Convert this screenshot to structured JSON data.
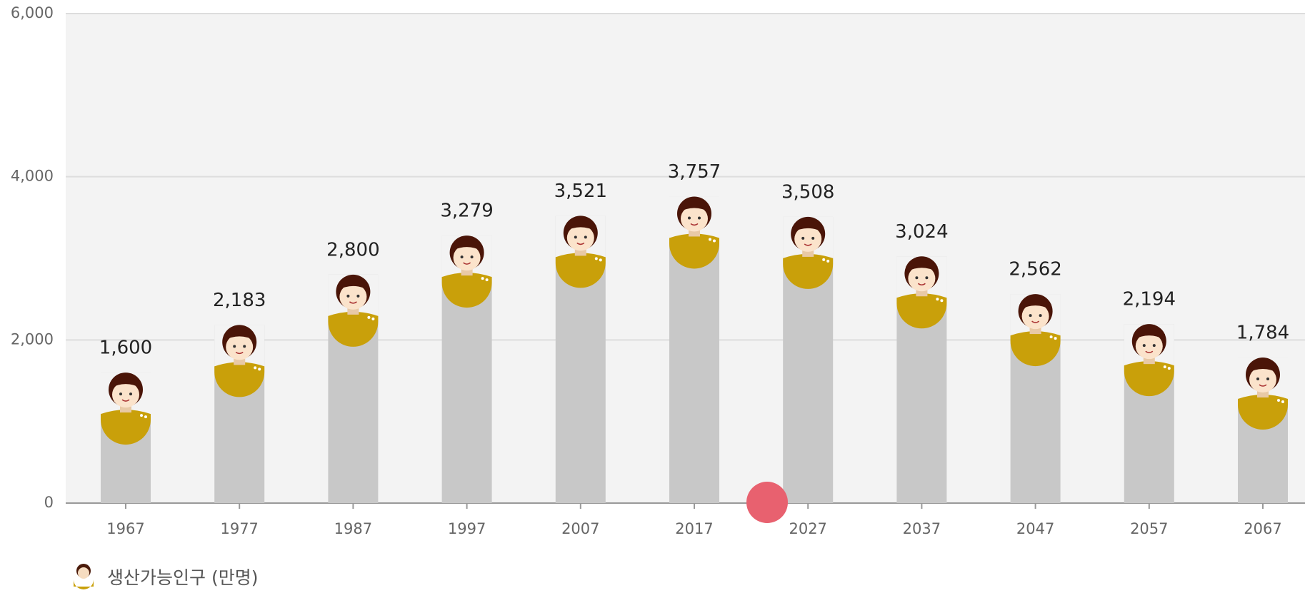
{
  "chart_data": {
    "type": "bar",
    "categories": [
      "1967",
      "1977",
      "1987",
      "1997",
      "2007",
      "2017",
      "2027",
      "2037",
      "2047",
      "2057",
      "2067"
    ],
    "series": [
      {
        "name": "생산가능인구 (만명)",
        "color": "#c8c8c8",
        "values": [
          1600,
          2183,
          2800,
          3279,
          3521,
          3757,
          3508,
          3024,
          2562,
          2194,
          1784
        ],
        "value_labels": [
          "1,600",
          "2,183",
          "2,800",
          "3,279",
          "3,521",
          "3,757",
          "3,508",
          "3,024",
          "2,562",
          "2,194",
          "1,784"
        ]
      }
    ],
    "ylim": [
      0,
      6000
    ],
    "yticks": [
      0,
      {
        "value": 2000,
        "label": "2,000"
      },
      {
        "value": 4000,
        "label": "4,000"
      },
      {
        "value": 6000,
        "label": "6,000"
      }
    ],
    "grid": true
  }
}
